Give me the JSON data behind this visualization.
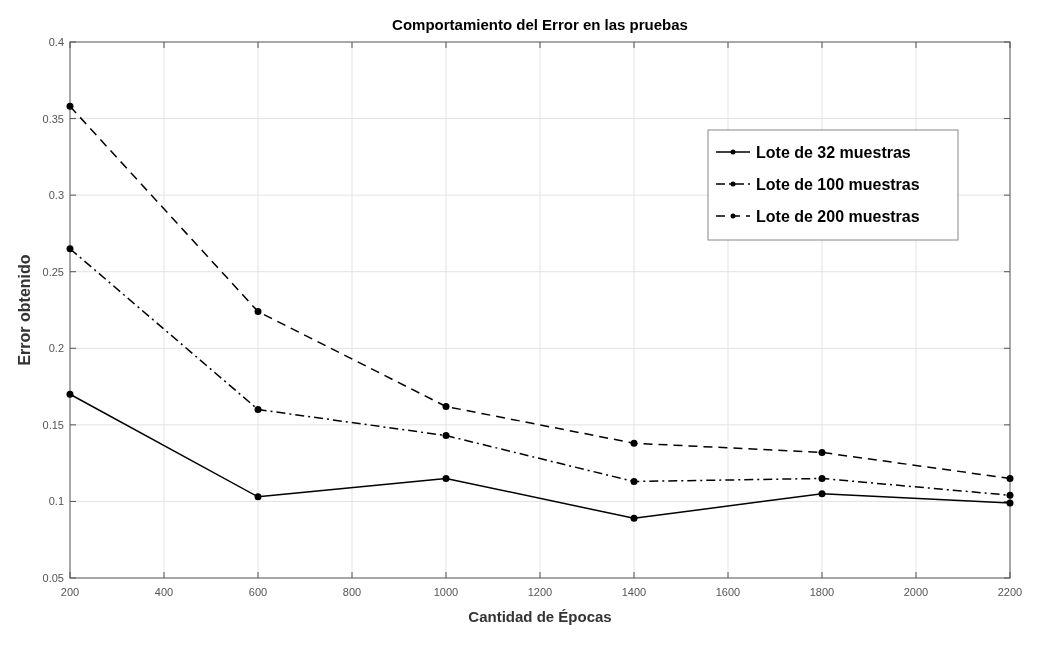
{
  "chart_data": {
    "type": "line",
    "title": "Comportamiento del Error en las pruebas",
    "xlabel": "Cantidad de Épocas",
    "ylabel": "Error obtenido",
    "x": [
      200,
      600,
      1000,
      1400,
      1800,
      2200
    ],
    "series": [
      {
        "name": "Lote de 32 muestras",
        "color": "#000000",
        "line_style": "solid",
        "values": [
          0.17,
          0.103,
          0.115,
          0.089,
          0.105,
          0.099
        ]
      },
      {
        "name": "Lote de 100 muestras",
        "color": "#000000",
        "line_style": "dashdot",
        "values": [
          0.265,
          0.16,
          0.143,
          0.113,
          0.115,
          0.104
        ]
      },
      {
        "name": "Lote de 200 muestras",
        "color": "#000000",
        "line_style": "dashed",
        "values": [
          0.358,
          0.224,
          0.162,
          0.138,
          0.132,
          0.115
        ]
      }
    ],
    "xlim": [
      200,
      2200
    ],
    "xticks": [
      200,
      400,
      600,
      800,
      1000,
      1200,
      1400,
      1600,
      1800,
      2000,
      2200
    ],
    "ylim": [
      0.05,
      0.4
    ],
    "yticks": [
      0.05,
      0.1,
      0.15,
      0.2,
      0.25,
      0.3,
      0.35,
      0.4
    ],
    "grid": true,
    "legend": "top right",
    "marker": "circle"
  }
}
